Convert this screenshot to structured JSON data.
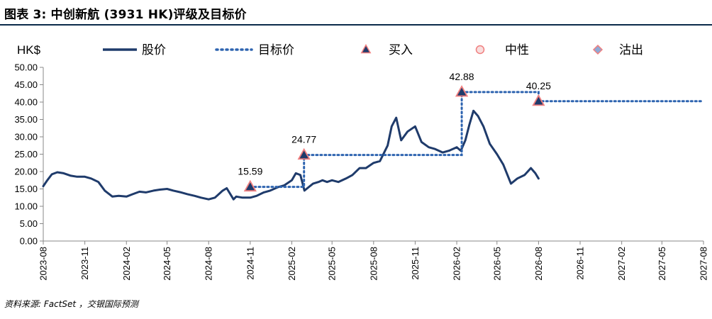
{
  "title": "图表 3: 中创新航 (3931 HK)评级及目标价",
  "source": "资料来源: FactSet ，交银国际预测",
  "colors": {
    "price": "#1f3b6b",
    "target": "#2e64b0",
    "marker_fill": "#1f3b6b",
    "marker_edge": "#f07f7f",
    "neutral_fill": "#f8dede",
    "sell_fill": "#8ea9d6"
  },
  "chart_data": {
    "type": "line",
    "unit_label": "HK$",
    "ylim": [
      0,
      50
    ],
    "yticks": [
      "0.00",
      "5.00",
      "10.00",
      "15.00",
      "20.00",
      "25.00",
      "30.00",
      "35.00",
      "40.00",
      "45.00",
      "50.00"
    ],
    "xlim": [
      "2023-08",
      "2027-08"
    ],
    "xticks": [
      "2023-08",
      "2023-11",
      "2024-02",
      "2024-05",
      "2024-08",
      "2024-11",
      "2025-02",
      "2025-05",
      "2025-08",
      "2025-11",
      "2026-02",
      "2026-05",
      "2026-08",
      "2026-11",
      "2027-02",
      "2027-05",
      "2027-08"
    ],
    "legend": {
      "position": "top",
      "items": [
        {
          "label": "股价",
          "icon": "solid-line-icon"
        },
        {
          "label": "目标价",
          "icon": "dotted-line-icon"
        },
        {
          "label": "买入",
          "icon": "triangle-icon"
        },
        {
          "label": "中性",
          "icon": "circle-icon"
        },
        {
          "label": "沽出",
          "icon": "diamond-icon"
        }
      ]
    },
    "series": [
      {
        "name": "股价",
        "x": [
          "2023-08-01",
          "2023-08-10",
          "2023-08-20",
          "2023-09-01",
          "2023-09-15",
          "2023-10-01",
          "2023-10-15",
          "2023-11-01",
          "2023-11-15",
          "2023-12-01",
          "2023-12-15",
          "2024-01-01",
          "2024-01-15",
          "2024-02-01",
          "2024-02-15",
          "2024-03-01",
          "2024-03-15",
          "2024-04-01",
          "2024-04-15",
          "2024-05-01",
          "2024-05-15",
          "2024-06-01",
          "2024-06-15",
          "2024-07-01",
          "2024-07-15",
          "2024-08-01",
          "2024-08-15",
          "2024-09-01",
          "2024-09-10",
          "2024-09-25",
          "2024-10-01",
          "2024-10-15",
          "2024-11-01",
          "2024-11-15",
          "2024-12-01",
          "2024-12-15",
          "2025-01-01",
          "2025-01-15",
          "2025-02-01",
          "2025-02-10",
          "2025-02-20",
          "2025-03-01",
          "2025-03-10",
          "2025-03-20",
          "2025-04-01",
          "2025-04-10",
          "2025-04-20",
          "2025-05-01",
          "2025-05-15",
          "2025-06-01",
          "2025-06-15",
          "2025-07-01",
          "2025-07-15",
          "2025-08-01",
          "2025-08-15",
          "2025-09-01",
          "2025-09-10",
          "2025-09-20",
          "2025-10-01",
          "2025-10-15",
          "2025-11-01",
          "2025-11-15",
          "2025-12-01",
          "2025-12-15",
          "2026-01-01",
          "2026-01-15",
          "2026-02-01",
          "2026-02-10",
          "2026-02-20",
          "2026-03-01",
          "2026-03-10",
          "2026-03-20",
          "2026-04-01",
          "2026-04-15",
          "2026-05-01",
          "2026-05-15",
          "2026-06-01",
          "2026-06-15",
          "2026-07-01",
          "2026-07-15",
          "2026-07-25",
          "2026-08-01"
        ],
        "values": [
          15.8,
          17.5,
          19.2,
          19.8,
          19.5,
          18.8,
          18.5,
          18.5,
          18.0,
          17.0,
          14.5,
          12.8,
          13.0,
          12.8,
          13.5,
          14.2,
          14.0,
          14.5,
          14.8,
          15.0,
          14.5,
          14.0,
          13.5,
          13.0,
          12.5,
          12.0,
          12.5,
          14.5,
          15.2,
          12.0,
          12.8,
          12.5,
          12.5,
          13.0,
          14.0,
          14.5,
          15.5,
          16.0,
          17.5,
          19.5,
          19.0,
          14.5,
          15.5,
          16.5,
          17.0,
          17.5,
          17.0,
          17.5,
          17.0,
          18.0,
          19.0,
          21.0,
          21.0,
          22.5,
          23.0,
          27.5,
          33.0,
          35.5,
          29.0,
          31.5,
          33.0,
          28.5,
          27.0,
          26.5,
          25.5,
          26.0,
          27.0,
          26.0,
          29.0,
          33.5,
          37.5,
          36.0,
          33.0,
          28.0,
          25.0,
          22.0,
          16.5,
          18.0,
          19.0,
          21.0,
          19.5,
          18.0
        ]
      },
      {
        "name": "目标价",
        "x": [
          "2024-11-01",
          "2025-02-28",
          "2025-02-28",
          "2026-02-12",
          "2026-02-12",
          "2026-08-01",
          "2026-08-01",
          "2027-08-01"
        ],
        "values": [
          15.59,
          15.59,
          24.77,
          24.77,
          42.88,
          42.88,
          40.25,
          40.25
        ]
      }
    ],
    "points": [
      {
        "x": "2024-11-01",
        "y": 15.59,
        "label": "15.59",
        "rating": "买入"
      },
      {
        "x": "2025-02-28",
        "y": 24.77,
        "label": "24.77",
        "rating": "买入"
      },
      {
        "x": "2026-02-12",
        "y": 42.88,
        "label": "42.88",
        "rating": "买入"
      },
      {
        "x": "2026-08-01",
        "y": 40.25,
        "label": "40.25",
        "rating": "买入"
      }
    ]
  }
}
